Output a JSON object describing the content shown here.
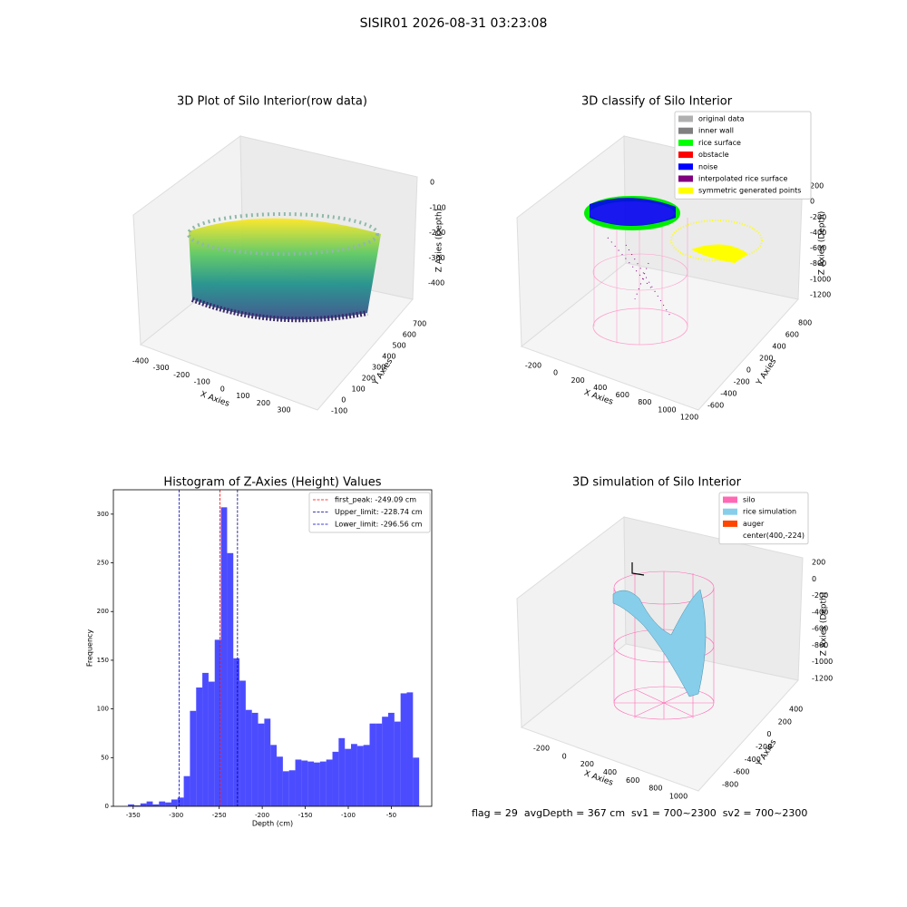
{
  "title": "SISIR01 2026-08-31 03:23:08",
  "footer": "flag = 29  avgDepth = 367 cm  sv1 = 700~2300  sv2 = 700~2300",
  "chart_data": [
    {
      "type": "scatter3d",
      "title": "3D Plot of Silo Interior(row data)",
      "x_label": "X Axies",
      "y_label": "Y Axies",
      "z_label": "Z Axies (Depth)",
      "xticks": [
        -400,
        -300,
        -200,
        -100,
        0,
        100,
        200,
        300
      ],
      "yticks": [
        -100,
        0,
        100,
        200,
        300,
        400,
        500,
        600,
        700
      ],
      "zticks": [
        0,
        -100,
        -200,
        -300,
        -400
      ]
    },
    {
      "type": "scatter3d",
      "title": "3D classify of Silo Interior",
      "x_label": "X Axies",
      "y_label": "Y Axies",
      "z_label": "Z Axies (Depth)",
      "xticks": [
        -200,
        0,
        200,
        400,
        600,
        800,
        1000,
        1200
      ],
      "yticks": [
        -600,
        -400,
        -200,
        0,
        200,
        400,
        600,
        800
      ],
      "zticks": [
        200,
        0,
        -200,
        -400,
        -600,
        -800,
        -1000,
        -1200
      ],
      "legend": [
        {
          "name": "original data",
          "color": "#b0b0b0"
        },
        {
          "name": "inner wall",
          "color": "#808080"
        },
        {
          "name": "rice surface",
          "color": "#00ff00"
        },
        {
          "name": "obstacle",
          "color": "#ff0000"
        },
        {
          "name": "noise",
          "color": "#0000ff"
        },
        {
          "name": "interpolated rice surface",
          "color": "#800080"
        },
        {
          "name": "symmetric generated points",
          "color": "#ffff00"
        }
      ]
    },
    {
      "type": "histogram",
      "title": "Histogram of Z-Axies (Height) Values",
      "x_label": "Depth (cm)",
      "y_label": "Frequency",
      "color": "#0000ff",
      "bins": [
        -356,
        -348.8,
        -341.6,
        -334.4,
        -327.2,
        -320,
        -312.8,
        -305.6,
        -298.4,
        -291.2,
        -284,
        -276.8,
        -269.6,
        -262.4,
        -255.2,
        -248,
        -240.8,
        -233.6,
        -226.4,
        -219.2,
        -212,
        -204.8,
        -197.6,
        -190.4,
        -183.2,
        -176,
        -168.8,
        -161.6,
        -154.4,
        -147.2,
        -140,
        -132.8,
        -125.6,
        -118.4,
        -111.2,
        -104,
        -96.8,
        -89.6,
        -82.4,
        -75.2,
        -68,
        -60.8,
        -53.6,
        -46.4,
        -39.2,
        -32,
        -24.8,
        -17.6
      ],
      "counts": [
        2,
        1,
        3,
        5,
        2,
        5,
        4,
        7,
        9,
        31,
        98,
        122,
        137,
        128,
        171,
        307,
        260,
        152,
        129,
        99,
        96,
        85,
        90,
        63,
        51,
        36,
        37,
        48,
        47,
        46,
        45,
        46,
        48,
        56,
        70,
        59,
        64,
        62,
        63,
        85,
        85,
        92,
        96,
        87,
        116,
        117,
        50
      ],
      "xlim": [
        -373,
        -3
      ],
      "ylim": [
        0,
        325
      ],
      "xticks": [
        -350,
        -300,
        -250,
        -200,
        -150,
        -100,
        -50
      ],
      "yticks": [
        0,
        50,
        100,
        150,
        200,
        250,
        300
      ],
      "vlines": [
        {
          "name": "first_peak: -249.09 cm",
          "value": -249.09,
          "color": "#ff0000"
        },
        {
          "name": "Upper_limit: -228.74 cm",
          "value": -228.74,
          "color": "#00008b"
        },
        {
          "name": "Lower_limit: -296.56 cm",
          "value": -296.56,
          "color": "#0000cd"
        }
      ]
    },
    {
      "type": "surface3d",
      "title": "3D simulation of Silo Interior",
      "x_label": "X Axies",
      "y_label": "Y Axies",
      "z_label": "Z Axies (Depth)",
      "xticks": [
        -200,
        0,
        200,
        400,
        600,
        800,
        1000
      ],
      "yticks": [
        -800,
        -600,
        -400,
        -200,
        0,
        200,
        400
      ],
      "zticks": [
        200,
        0,
        -200,
        -400,
        -600,
        -800,
        -1000,
        -1200
      ],
      "legend": [
        {
          "name": "silo",
          "color": "#ff69b4"
        },
        {
          "name": "rice simulation",
          "color": "#87ceeb"
        },
        {
          "name": "auger",
          "color": "#ff4500"
        },
        {
          "name": "center(400,-224)",
          "color": "#ffffff"
        }
      ]
    }
  ]
}
